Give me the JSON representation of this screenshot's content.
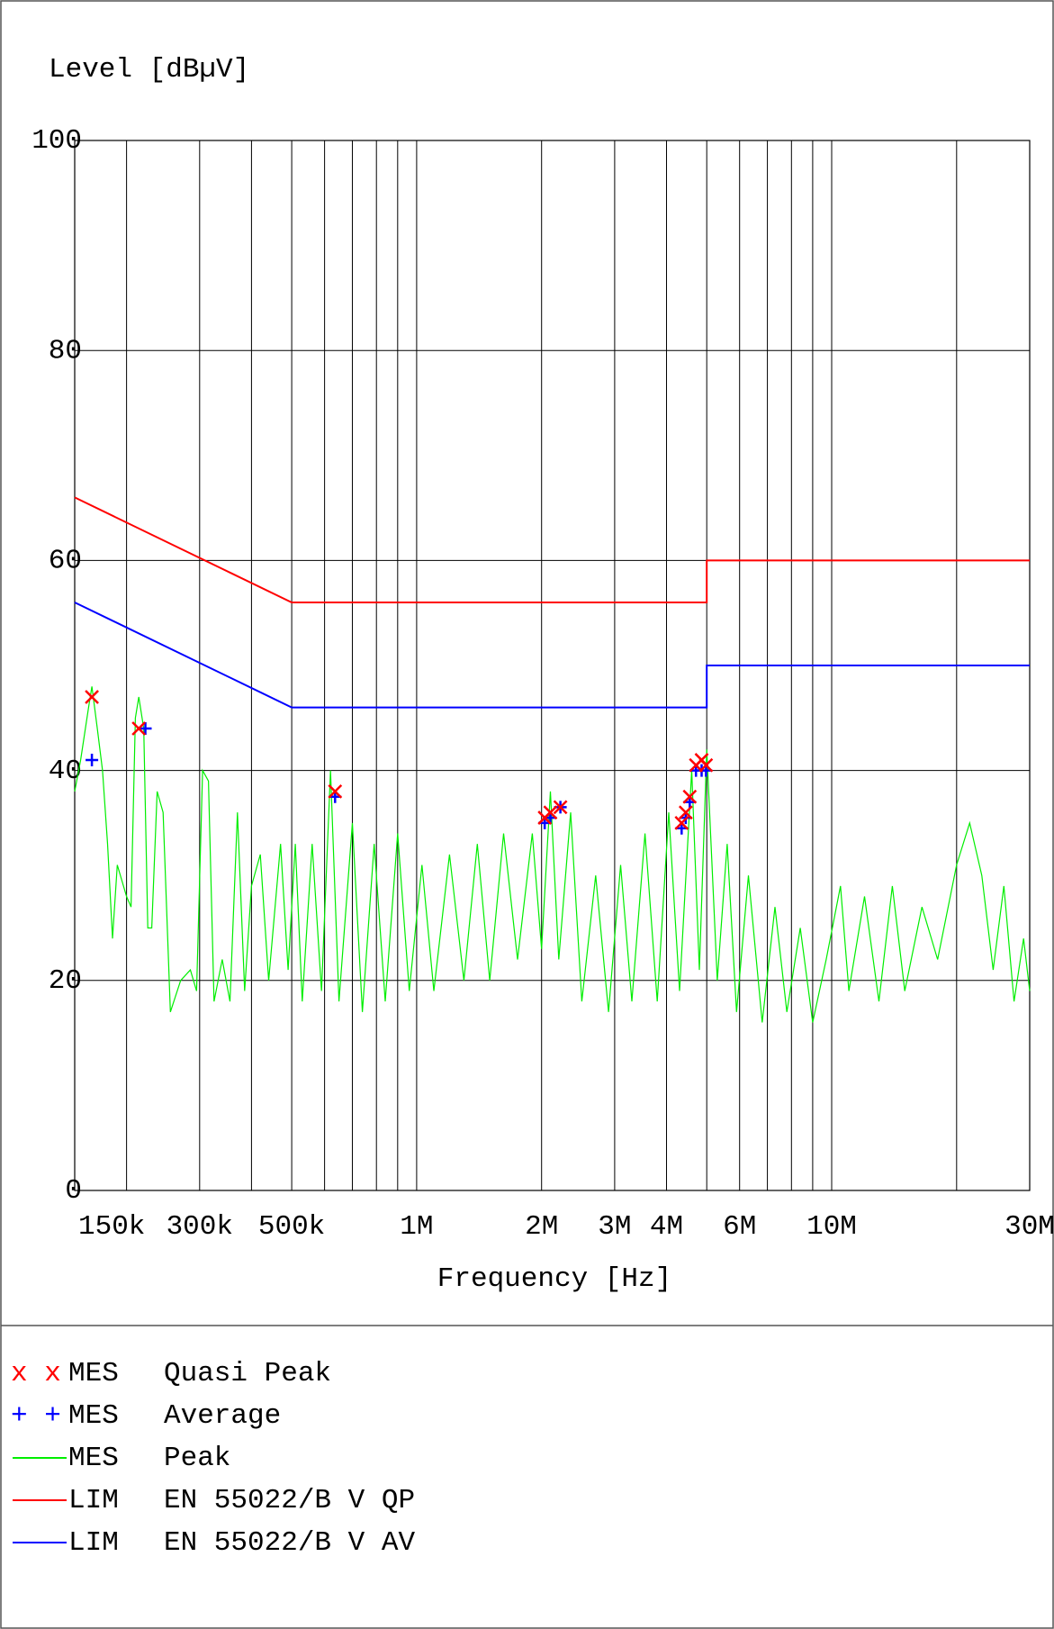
{
  "chart_data": {
    "type": "line",
    "ylabel": "Level [dBµV]",
    "xlabel": "Frequency [Hz]",
    "xscale": "log",
    "grid": true,
    "xlim": [
      150000,
      30000000
    ],
    "ylim": [
      0,
      100
    ],
    "yticks": [
      0,
      20,
      40,
      60,
      80,
      100
    ],
    "xticks": [
      {
        "value": 150000,
        "label": "150k"
      },
      {
        "value": 300000,
        "label": "300k"
      },
      {
        "value": 500000,
        "label": "500k"
      },
      {
        "value": 1000000,
        "label": "1M"
      },
      {
        "value": 2000000,
        "label": "2M"
      },
      {
        "value": 3000000,
        "label": "3M"
      },
      {
        "value": 4000000,
        "label": "4M"
      },
      {
        "value": 6000000,
        "label": "6M"
      },
      {
        "value": 10000000,
        "label": "10M"
      },
      {
        "value": 30000000,
        "label": "30M"
      }
    ],
    "xminor": [
      200000,
      300000,
      400000,
      500000,
      600000,
      700000,
      800000,
      900000,
      1000000,
      2000000,
      3000000,
      4000000,
      5000000,
      6000000,
      7000000,
      8000000,
      9000000,
      10000000,
      20000000,
      30000000
    ],
    "series": [
      {
        "name": "Quasi Peak",
        "kind": "marker",
        "symbol": "x",
        "legend_key": "x x",
        "legend_tag": "MES",
        "color": "#ff0000",
        "x": [
          165000,
          214000,
          636000,
          2035000,
          2100000,
          2220000,
          4350000,
          4450000,
          4550000,
          4710000,
          4860000,
          4980000
        ],
        "values": [
          47,
          44,
          38,
          35.5,
          36,
          36.5,
          35,
          36,
          37.5,
          40.5,
          41,
          40.5
        ]
      },
      {
        "name": "Average",
        "kind": "marker",
        "symbol": "+",
        "legend_key": "+ +",
        "legend_tag": "MES",
        "color": "#0000ff",
        "x": [
          165000,
          222000,
          636000,
          2035000,
          2100000,
          2220000,
          4350000,
          4450000,
          4550000,
          4710000,
          4860000,
          4980000
        ],
        "values": [
          41,
          44,
          37.5,
          35,
          35.5,
          36.5,
          34.5,
          35.5,
          37,
          40,
          40,
          40
        ]
      },
      {
        "name": "Peak",
        "kind": "line",
        "legend_tag": "MES",
        "color": "#00ee00",
        "x": [
          150000,
          155000,
          162000,
          165000,
          170000,
          175000,
          180000,
          185000,
          190000,
          200000,
          205000,
          210000,
          214000,
          220000,
          225000,
          230000,
          237000,
          245000,
          255000,
          270000,
          285000,
          295000,
          305000,
          315000,
          325000,
          340000,
          355000,
          370000,
          385000,
          400000,
          420000,
          440000,
          470000,
          490000,
          510000,
          530000,
          560000,
          590000,
          620000,
          650000,
          700000,
          740000,
          790000,
          840000,
          900000,
          960000,
          1030000,
          1100000,
          1200000,
          1300000,
          1400000,
          1500000,
          1620000,
          1750000,
          1900000,
          2000000,
          2100000,
          2200000,
          2350000,
          2500000,
          2700000,
          2900000,
          3100000,
          3300000,
          3550000,
          3800000,
          4050000,
          4300000,
          4600000,
          4800000,
          5000000,
          5300000,
          5600000,
          5900000,
          6300000,
          6800000,
          7300000,
          7800000,
          8400000,
          9000000,
          9700000,
          10500000,
          11000000,
          12000000,
          13000000,
          14000000,
          15000000,
          16500000,
          18000000,
          20000000,
          21500000,
          23000000,
          24500000,
          26000000,
          27500000,
          29000000,
          30000000
        ],
        "values": [
          38,
          41,
          46,
          48,
          44,
          40,
          33,
          24,
          31,
          28,
          27,
          45,
          47,
          44,
          25,
          25,
          38,
          36,
          17,
          20,
          21,
          19,
          40,
          39,
          18,
          22,
          18,
          36,
          19,
          29,
          32,
          20,
          33,
          21,
          33,
          18,
          33,
          19,
          40,
          18,
          35,
          17,
          33,
          18,
          34,
          19,
          31,
          19,
          32,
          20,
          33,
          20,
          34,
          22,
          34,
          23,
          38,
          22,
          36,
          18,
          30,
          17,
          31,
          18,
          34,
          18,
          36,
          19,
          40,
          21,
          42,
          20,
          33,
          17,
          30,
          16,
          27,
          17,
          25,
          16,
          22,
          29,
          19,
          28,
          18,
          29,
          19,
          27,
          22,
          31,
          35,
          30,
          21,
          29,
          18,
          24,
          19
        ]
      },
      {
        "name": "EN 55022/B V QP",
        "kind": "line",
        "legend_tag": "LIM",
        "color": "#ff0000",
        "x": [
          150000,
          500000,
          5000000,
          5000000,
          30000000
        ],
        "values": [
          66,
          56,
          56,
          60,
          60
        ]
      },
      {
        "name": "EN 55022/B V AV",
        "kind": "line",
        "legend_tag": "LIM",
        "color": "#0000ff",
        "x": [
          150000,
          500000,
          5000000,
          5000000,
          30000000
        ],
        "values": [
          56,
          46,
          46,
          50,
          50
        ]
      }
    ]
  }
}
